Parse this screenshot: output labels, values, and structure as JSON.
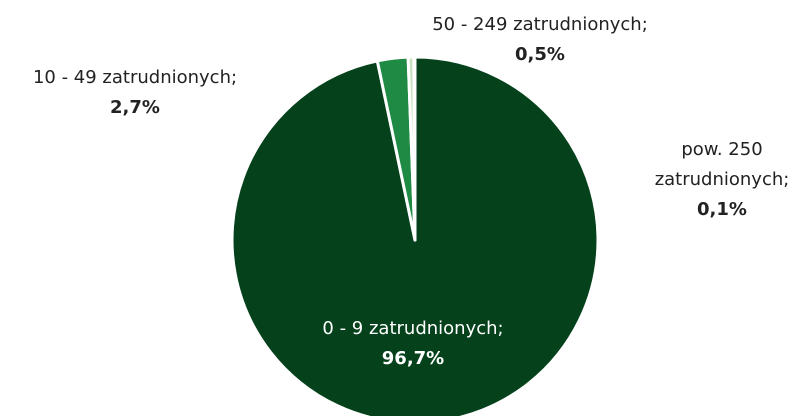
{
  "chart_data": {
    "type": "pie",
    "categories": [
      "0 - 9 zatrudnionych;",
      "10 - 49 zatrudnionych;",
      "50 - 249 zatrudnionych;",
      "pow. 250 zatrudnionych;"
    ],
    "values": [
      96.7,
      2.7,
      0.5,
      0.1
    ],
    "value_labels": [
      "96,7%",
      "2,7%",
      "0,5%",
      "0,1%"
    ],
    "colors": [
      "#05421c",
      "#1f8a44",
      "#c6e2bf",
      "#f2f8ef"
    ]
  }
}
